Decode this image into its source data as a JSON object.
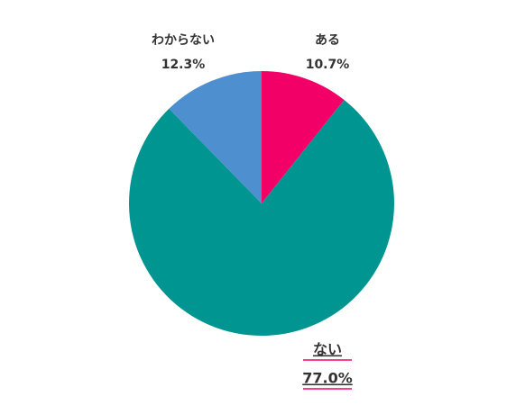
{
  "chart_data": {
    "type": "pie",
    "categories": [
      "ある",
      "ない",
      "わからない"
    ],
    "values": [
      10.7,
      77.0,
      12.3
    ],
    "value_labels": [
      "10.7%",
      "77.0%",
      "12.3%"
    ],
    "colors": [
      "#f20068",
      "#009591",
      "#4e8fcf"
    ]
  }
}
